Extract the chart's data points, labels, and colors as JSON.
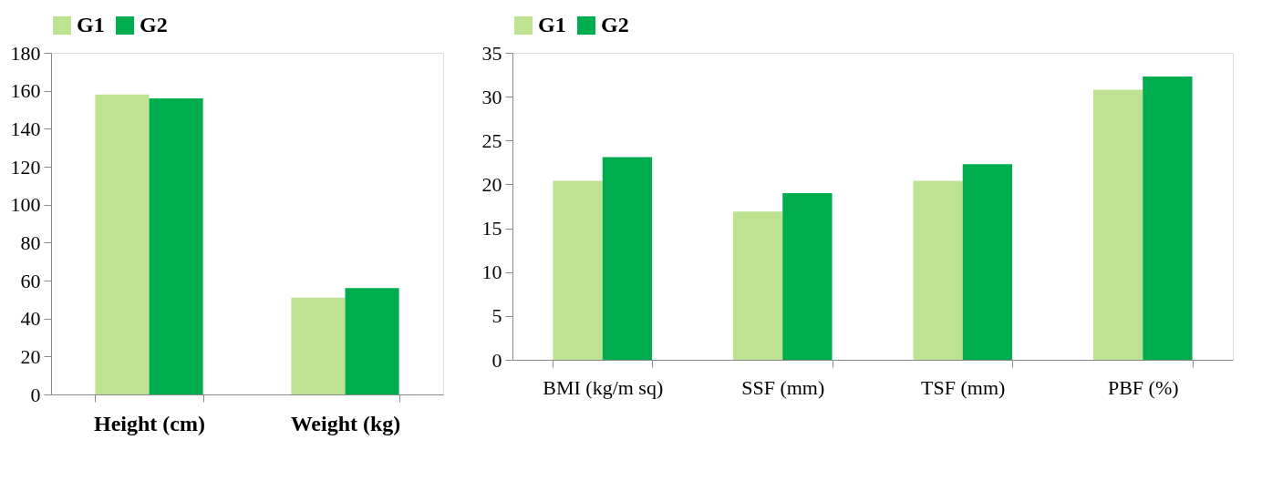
{
  "chart_data": [
    {
      "type": "bar",
      "categories": [
        "Height (cm)",
        "Weight (kg)"
      ],
      "series": [
        {
          "name": "G1",
          "color": "#bde292",
          "values": [
            158,
            51
          ]
        },
        {
          "name": "G2",
          "color": "#00ad4e",
          "values": [
            156,
            56
          ]
        }
      ],
      "ylim": [
        0,
        180
      ],
      "yticks": [
        0,
        20,
        40,
        60,
        80,
        100,
        120,
        140,
        160,
        180
      ],
      "grid": false,
      "legend": "top"
    },
    {
      "type": "bar",
      "categories": [
        "BMI (kg/m sq)",
        "SSF (mm)",
        "TSF (mm)",
        "PBF (%)"
      ],
      "series": [
        {
          "name": "G1",
          "color": "#bde292",
          "values": [
            20.4,
            16.9,
            20.4,
            30.8
          ]
        },
        {
          "name": "G2",
          "color": "#00ad4e",
          "values": [
            23.1,
            19.0,
            22.3,
            32.3
          ]
        }
      ],
      "ylim": [
        0,
        35
      ],
      "yticks": [
        0,
        5,
        10,
        15,
        20,
        25,
        30,
        35
      ],
      "grid": false,
      "legend": "top"
    }
  ]
}
